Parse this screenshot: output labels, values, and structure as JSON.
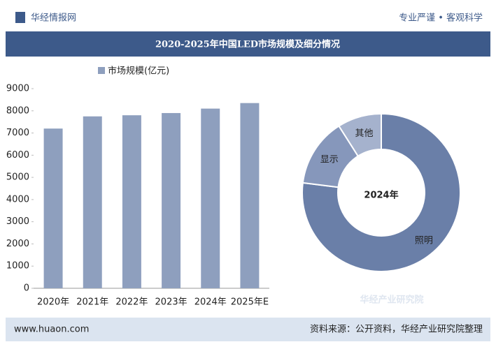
{
  "header": {
    "brand": "华经情报网",
    "slogan": "专业严谨 • 客观科学",
    "title": "2020-2025年中国LED市场规模及细分情况"
  },
  "chart_data": [
    {
      "type": "bar",
      "categories": [
        "2020年",
        "2021年",
        "2022年",
        "2023年",
        "2024年",
        "2025年E"
      ],
      "series": [
        {
          "name": "市场规模(亿元)",
          "color": "#8e9fbe",
          "values": [
            7200,
            7750,
            7800,
            7900,
            8100,
            8350
          ]
        }
      ],
      "ylim": [
        0,
        9000
      ],
      "yticks": [
        0,
        1000,
        2000,
        3000,
        4000,
        5000,
        6000,
        7000,
        8000,
        9000
      ],
      "grid": false
    },
    {
      "type": "pie",
      "center_label": "2024年",
      "categories": [
        "照明",
        "显示",
        "其他"
      ],
      "values": [
        77,
        14,
        9
      ],
      "colors": [
        "#6a7fa8",
        "#8697bb",
        "#a5b2cd"
      ]
    }
  ],
  "footer": {
    "website": "www.huaon.com",
    "source": "资料来源：公开资料，华经产业研究院整理"
  },
  "watermark": "华经产业研究院"
}
